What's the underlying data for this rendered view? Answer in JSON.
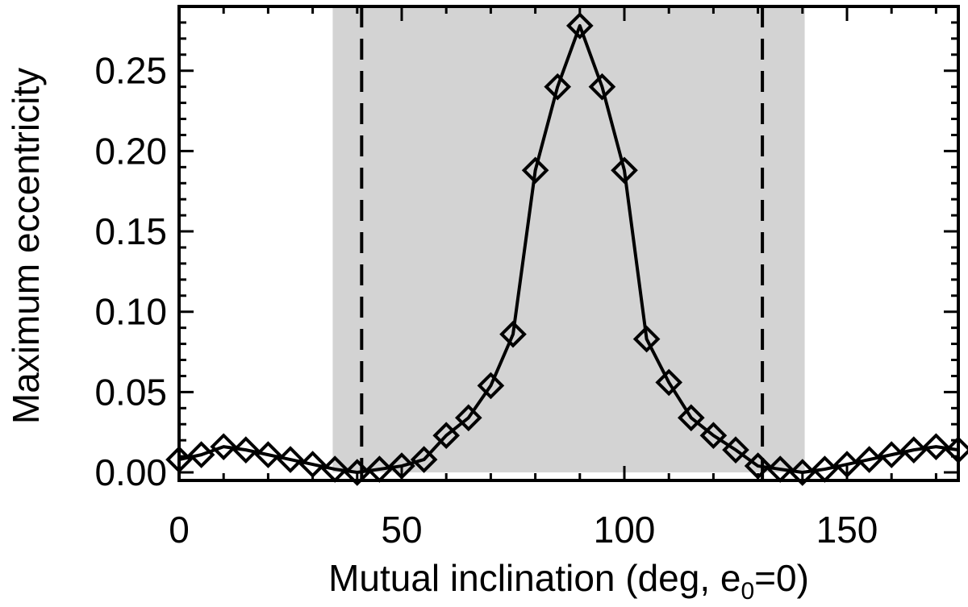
{
  "chart_data": {
    "type": "line",
    "xlabel": {
      "text_before": "Mutual inclination (deg, e",
      "subscript": "0",
      "text_after": "=0)"
    },
    "ylabel": "Maximum eccentricity",
    "xlim": [
      0,
      175
    ],
    "ylim": [
      -0.005,
      0.29
    ],
    "x_ticks": [
      0,
      50,
      100,
      150
    ],
    "x_tick_labels": [
      "0",
      "50",
      "100",
      "150"
    ],
    "y_ticks": [
      0.0,
      0.05,
      0.1,
      0.15,
      0.2,
      0.25
    ],
    "y_tick_labels": [
      "0.00",
      "0.05",
      "0.10",
      "0.15",
      "0.20",
      "0.25"
    ],
    "shaded_region": {
      "x_range": [
        34.5,
        140.5
      ],
      "y_range": [
        0.0,
        0.29
      ],
      "color": "#d3d3d3"
    },
    "vertical_dashed_lines": [
      41,
      131
    ],
    "series": [
      {
        "marker": "diamond",
        "color": "#000000",
        "x": [
          0,
          5,
          10,
          15,
          20,
          25,
          30,
          35,
          40,
          45,
          50,
          55,
          60,
          65,
          70,
          75,
          80,
          85,
          90,
          95,
          100,
          105,
          110,
          115,
          120,
          125,
          130,
          135,
          140,
          145,
          150,
          155,
          160,
          165,
          170,
          175
        ],
        "y": [
          0.008,
          0.011,
          0.016,
          0.014,
          0.011,
          0.008,
          0.005,
          0.002,
          0.0,
          0.002,
          0.004,
          0.008,
          0.023,
          0.034,
          0.054,
          0.086,
          0.188,
          0.24,
          0.278,
          0.24,
          0.188,
          0.083,
          0.056,
          0.034,
          0.023,
          0.014,
          0.004,
          0.002,
          0.0,
          0.002,
          0.005,
          0.008,
          0.011,
          0.014,
          0.016,
          0.014
        ]
      }
    ],
    "grid": false
  }
}
